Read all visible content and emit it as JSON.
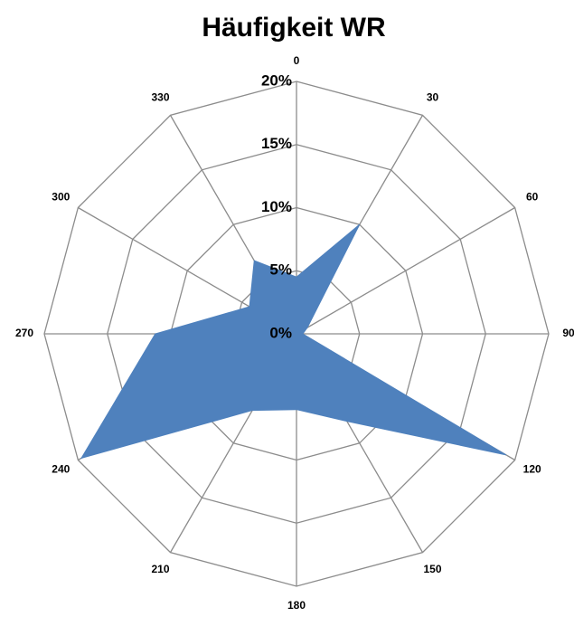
{
  "chart_data": {
    "type": "radar",
    "title": "Häufigkeit WR",
    "categories": [
      "0",
      "30",
      "60",
      "90",
      "120",
      "150",
      "180",
      "210",
      "240",
      "270",
      "300",
      "330"
    ],
    "series": [
      {
        "name": "WR",
        "color": "#4f81bd",
        "values": [
          4.5,
          10,
          1,
          0.5,
          19.2,
          8,
          6,
          7,
          19.7,
          11.2,
          4.3,
          6.7
        ]
      }
    ],
    "ylim": [
      0,
      20
    ],
    "yticks": [
      {
        "value": 0,
        "label": "0%"
      },
      {
        "value": 5,
        "label": "5%"
      },
      {
        "value": 10,
        "label": "10%"
      },
      {
        "value": 15,
        "label": "15%"
      },
      {
        "value": 20,
        "label": "20%"
      }
    ],
    "grid": true
  }
}
